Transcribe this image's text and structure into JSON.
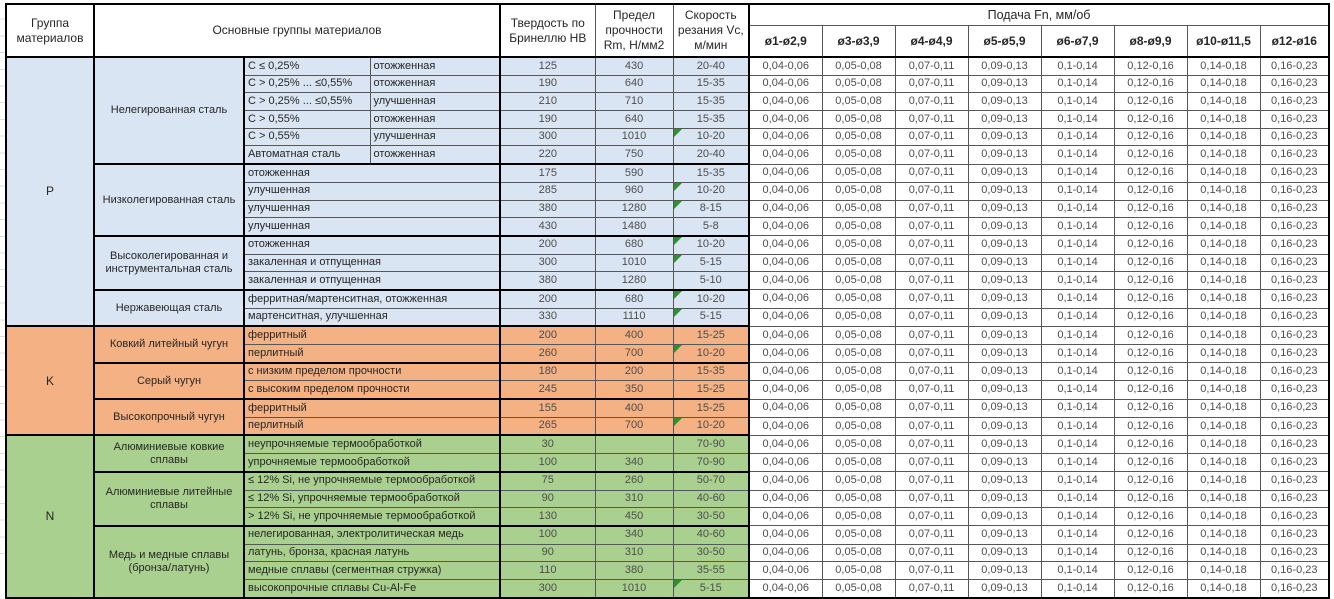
{
  "table": {
    "headers": {
      "group": "Группа материалов",
      "materials": "Основные группы материалов",
      "hardness": "Твердость по Бринеллю HB",
      "strength": "Предел прочности Rm, Н/мм2",
      "speed": "Скорость резания Vc, м/мин",
      "feed": "Подача Fn, мм/об",
      "diameters": [
        "ø1-ø2,9",
        "ø3-ø3,9",
        "ø4-ø4,9",
        "ø5-ø5,9",
        "ø6-ø7,9",
        "ø8-ø9,9",
        "ø10-ø11,5",
        "ø12-ø16"
      ]
    },
    "feed_values": [
      "0,04-0,06",
      "0,05-0,08",
      "0,07-0,11",
      "0,09-0,13",
      "0,1-0,14",
      "0,12-0,16",
      "0,14-0,18",
      "0,16-0,23"
    ],
    "flag_color": "#2d9132",
    "groups": [
      {
        "letter": "P",
        "color": "#D9E5F2",
        "families": [
          {
            "name": "Нелегированная сталь",
            "rows": [
              {
                "cond1": "C ≤ 0,25%",
                "cond2": "отожженная",
                "hb": "125",
                "rm": "430",
                "vc": "20-40"
              },
              {
                "cond1": "C > 0,25% ... ≤0,55%",
                "cond2": "отожженная",
                "hb": "190",
                "rm": "640",
                "vc": "15-35"
              },
              {
                "cond1": "C > 0,25% ... ≤0,55%",
                "cond2": "улучшенная",
                "hb": "210",
                "rm": "710",
                "vc": "15-35"
              },
              {
                "cond1": "C > 0,55%",
                "cond2": "отожженная",
                "hb": "190",
                "rm": "640",
                "vc": "15-35"
              },
              {
                "cond1": "C > 0,55%",
                "cond2": "улучшенная",
                "hb": "300",
                "rm": "1010",
                "vc": "10-20",
                "flag": true
              },
              {
                "cond1": "Автоматная сталь",
                "cond2": "отожженная",
                "hb": "220",
                "rm": "750",
                "vc": "20-40"
              }
            ]
          },
          {
            "name": "Низколегированная сталь",
            "rows": [
              {
                "cond": "отожженная",
                "hb": "175",
                "rm": "590",
                "vc": "15-35"
              },
              {
                "cond": "улучшенная",
                "hb": "285",
                "rm": "960",
                "vc": "10-20",
                "flag": true
              },
              {
                "cond": "улучшенная",
                "hb": "380",
                "rm": "1280",
                "vc": "8-15",
                "flag": true
              },
              {
                "cond": "улучшенная",
                "hb": "430",
                "rm": "1480",
                "vc": "5-8"
              }
            ]
          },
          {
            "name": "Высоколегированная и инструментальная сталь",
            "rows": [
              {
                "cond": "отожженная",
                "hb": "200",
                "rm": "680",
                "vc": "10-20",
                "flag": true
              },
              {
                "cond": "закаленная и отпущенная",
                "hb": "300",
                "rm": "1010",
                "vc": "5-15",
                "flag": true
              },
              {
                "cond": "закаленная и отпущенная",
                "hb": "380",
                "rm": "1280",
                "vc": "5-10"
              }
            ]
          },
          {
            "name": "Нержавеющая сталь",
            "rows": [
              {
                "cond": "ферритная/мартенситная, отожженная",
                "hb": "200",
                "rm": "680",
                "vc": "10-20",
                "flag": true
              },
              {
                "cond": "мартенситная, улучшенная",
                "hb": "330",
                "rm": "1110",
                "vc": "5-15",
                "flag": true
              }
            ]
          }
        ]
      },
      {
        "letter": "K",
        "color": "#F4B183",
        "families": [
          {
            "name": "Ковкий литейный чугун",
            "rows": [
              {
                "cond": "ферритный",
                "hb": "200",
                "rm": "400",
                "vc": "15-25"
              },
              {
                "cond": "перлитный",
                "hb": "260",
                "rm": "700",
                "vc": "10-20",
                "flag": true
              }
            ]
          },
          {
            "name": "Серый чугун",
            "rows": [
              {
                "cond": "с низким пределом прочности",
                "hb": "180",
                "rm": "200",
                "vc": "15-35"
              },
              {
                "cond": "с высоким пределом прочности",
                "hb": "245",
                "rm": "350",
                "vc": "15-25"
              }
            ]
          },
          {
            "name": "Высокопрочный чугун",
            "rows": [
              {
                "cond": "ферритный",
                "hb": "155",
                "rm": "400",
                "vc": "15-25"
              },
              {
                "cond": "перлитный",
                "hb": "265",
                "rm": "700",
                "vc": "10-20",
                "flag": true
              }
            ]
          }
        ]
      },
      {
        "letter": "N",
        "color": "#A9D08E",
        "families": [
          {
            "name": "Алюминиевые ковкие сплавы",
            "rows": [
              {
                "cond": "неупрочняемые термообработкой",
                "hb": "30",
                "rm": "",
                "vc": "70-90"
              },
              {
                "cond": "упрочняемые термообработкой",
                "hb": "100",
                "rm": "340",
                "vc": "70-90"
              }
            ]
          },
          {
            "name": "Алюминиевые литейные сплавы",
            "rows": [
              {
                "cond": "≤ 12% Si, не упрочняемые термообработкой",
                "hb": "75",
                "rm": "260",
                "vc": "50-70"
              },
              {
                "cond": "≤ 12% Si, упрочняемые термообработкой",
                "hb": "90",
                "rm": "310",
                "vc": "40-60"
              },
              {
                "cond": "> 12% Si, не упрочняемые термообработкой",
                "hb": "130",
                "rm": "450",
                "vc": "30-50"
              }
            ]
          },
          {
            "name": "Медь и медные сплавы (бронза/латунь)",
            "rows": [
              {
                "cond": "нелегированная, электролитическая медь",
                "hb": "100",
                "rm": "340",
                "vc": "40-60"
              },
              {
                "cond": "латунь, бронза, красная латунь",
                "hb": "90",
                "rm": "310",
                "vc": "30-50"
              },
              {
                "cond": "медные сплавы (сегментная стружка)",
                "hb": "110",
                "rm": "380",
                "vc": "35-55"
              },
              {
                "cond": "высокопрочные сплавы Cu-Al-Fe",
                "hb": "300",
                "rm": "1010",
                "vc": "5-15",
                "flag": true
              }
            ]
          }
        ]
      }
    ]
  }
}
